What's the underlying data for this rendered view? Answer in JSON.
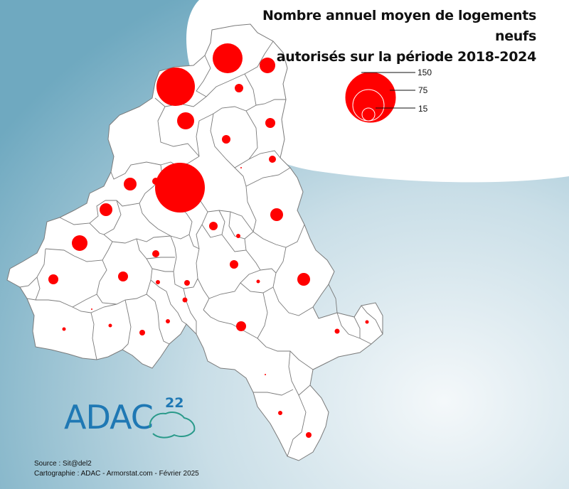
{
  "title_line1": "Nombre annuel moyen de logements neufs",
  "title_line2": "autorisés sur la période 2018-2024",
  "legend": {
    "values": [
      "150",
      "75",
      "15"
    ]
  },
  "source": "Source : Sit@del2",
  "credits": "Cartographie : ADAC - Armorstat.com - Février 2025",
  "logo": {
    "text": "ADAC",
    "superscript": "22"
  },
  "colors": {
    "symbol": "#ff0000",
    "territory": "#ffffff",
    "border": "#7a7a7a",
    "sea_light": "#e9f1f5",
    "sea_dark": "#7fb3c8",
    "logo_blue": "#1f78b4",
    "logo_green": "#2a9a8a"
  }
}
